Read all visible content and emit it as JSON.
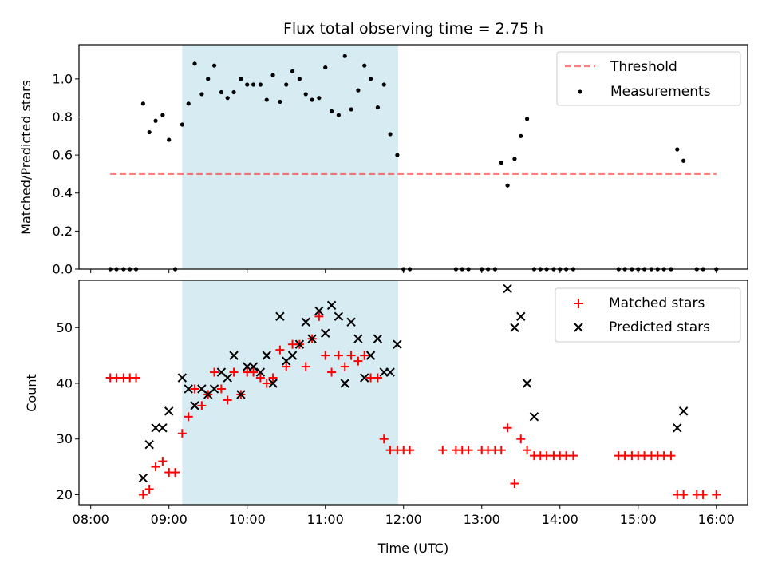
{
  "title": "Flux total observing time = 2.75 h",
  "colors": {
    "shade": "#add8e6",
    "threshold": "#ff0000",
    "matched": "#ff0000",
    "predicted": "#000000",
    "measurement": "#000000"
  },
  "shaded_interval_hours": [
    9.17,
    11.93
  ],
  "chart_data": [
    {
      "type": "scatter",
      "panel": "top",
      "ylabel": "Matched/Predicted stars",
      "ylim": [
        0,
        1.18
      ],
      "yticks": [
        0.0,
        0.2,
        0.4,
        0.6,
        0.8,
        1.0
      ],
      "ytick_labels": [
        "0.0",
        "0.2",
        "0.4",
        "0.6",
        "0.8",
        "1.0"
      ],
      "legend_position": "top-right",
      "threshold": {
        "name": "Threshold",
        "value": 0.5,
        "x": [
          8.25,
          16.0
        ]
      },
      "series": [
        {
          "name": "Measurements",
          "x": [
            8.25,
            8.33,
            8.42,
            8.5,
            8.58,
            8.67,
            8.75,
            8.83,
            8.92,
            9.0,
            9.08,
            9.17,
            9.25,
            9.33,
            9.42,
            9.5,
            9.58,
            9.67,
            9.75,
            9.83,
            9.92,
            10.0,
            10.08,
            10.17,
            10.25,
            10.33,
            10.42,
            10.5,
            10.58,
            10.67,
            10.75,
            10.83,
            10.92,
            11.0,
            11.08,
            11.17,
            11.25,
            11.33,
            11.42,
            11.5,
            11.58,
            11.67,
            11.75,
            11.83,
            11.92,
            12.0,
            12.08,
            12.67,
            12.75,
            12.83,
            13.0,
            13.08,
            13.17,
            13.25,
            13.33,
            13.42,
            13.5,
            13.58,
            13.67,
            13.75,
            13.83,
            13.92,
            14.0,
            14.08,
            14.17,
            14.75,
            14.83,
            14.92,
            15.0,
            15.08,
            15.17,
            15.25,
            15.33,
            15.42,
            15.5,
            15.58,
            15.75,
            15.83,
            16.0
          ],
          "y": [
            0.0,
            0.0,
            0.0,
            0.0,
            0.0,
            0.87,
            0.72,
            0.78,
            0.81,
            0.68,
            0.0,
            0.76,
            0.87,
            1.08,
            0.92,
            1.0,
            1.07,
            0.93,
            0.9,
            0.93,
            1.0,
            0.97,
            0.97,
            0.97,
            0.89,
            1.02,
            0.88,
            0.97,
            1.04,
            1.0,
            0.92,
            0.89,
            0.9,
            1.06,
            0.83,
            0.81,
            1.12,
            0.84,
            0.94,
            1.07,
            1.0,
            0.85,
            0.97,
            0.71,
            0.6,
            0.0,
            0.0,
            0.0,
            0.0,
            0.0,
            0.0,
            0.0,
            0.0,
            0.56,
            0.44,
            0.58,
            0.7,
            0.79,
            0.0,
            0.0,
            0.0,
            0.0,
            0.0,
            0.0,
            0.0,
            0.0,
            0.0,
            0.0,
            0.0,
            0.0,
            0.0,
            0.0,
            0.0,
            0.0,
            0.63,
            0.57,
            0.0,
            0.0,
            0.0
          ]
        }
      ],
      "legend": [
        "Threshold",
        "Measurements"
      ]
    },
    {
      "type": "scatter",
      "panel": "bottom",
      "xlabel": "Time (UTC)",
      "ylabel": "Count",
      "ylim": [
        18.2,
        58.5
      ],
      "yticks": [
        20,
        30,
        40,
        50
      ],
      "ytick_labels": [
        "20",
        "30",
        "40",
        "50"
      ],
      "xlim": [
        7.85,
        16.4
      ],
      "xticks": [
        8,
        9,
        10,
        11,
        12,
        13,
        14,
        15,
        16
      ],
      "xtick_labels": [
        "08:00",
        "09:00",
        "10:00",
        "11:00",
        "12:00",
        "13:00",
        "14:00",
        "15:00",
        "16:00"
      ],
      "legend_position": "top-right",
      "series": [
        {
          "name": "Matched stars",
          "marker": "plus",
          "x": [
            8.25,
            8.33,
            8.42,
            8.5,
            8.58,
            8.67,
            8.75,
            8.83,
            8.92,
            9.0,
            9.08,
            9.17,
            9.25,
            9.33,
            9.42,
            9.5,
            9.58,
            9.67,
            9.75,
            9.83,
            9.92,
            10.0,
            10.08,
            10.17,
            10.25,
            10.33,
            10.42,
            10.5,
            10.58,
            10.67,
            10.75,
            10.83,
            10.92,
            11.0,
            11.08,
            11.17,
            11.25,
            11.33,
            11.42,
            11.5,
            11.58,
            11.67,
            11.75,
            11.83,
            11.92,
            12.0,
            12.08,
            12.5,
            12.67,
            12.75,
            12.83,
            13.0,
            13.08,
            13.17,
            13.25,
            13.33,
            13.42,
            13.5,
            13.58,
            13.67,
            13.75,
            13.83,
            13.92,
            14.0,
            14.08,
            14.17,
            14.75,
            14.83,
            14.92,
            15.0,
            15.08,
            15.17,
            15.25,
            15.33,
            15.42,
            15.5,
            15.58,
            15.75,
            15.83,
            16.0
          ],
          "y": [
            41,
            41,
            41,
            41,
            41,
            20,
            21,
            25,
            26,
            24,
            24,
            31,
            34,
            39,
            36,
            38,
            42,
            39,
            37,
            42,
            38,
            42,
            42,
            41,
            40,
            41,
            46,
            43,
            47,
            47,
            43,
            48,
            52,
            45,
            42,
            45,
            43,
            45,
            44,
            45,
            41,
            41,
            30,
            28,
            28,
            28,
            28,
            28,
            28,
            28,
            28,
            28,
            28,
            28,
            28,
            32,
            22,
            30,
            28,
            27,
            27,
            27,
            27,
            27,
            27,
            27,
            27,
            27,
            27,
            27,
            27,
            27,
            27,
            27,
            27,
            20,
            20,
            20,
            20,
            20
          ]
        },
        {
          "name": "Predicted stars",
          "marker": "x",
          "x": [
            8.67,
            8.75,
            8.83,
            8.92,
            9.0,
            9.17,
            9.25,
            9.33,
            9.42,
            9.5,
            9.58,
            9.67,
            9.75,
            9.83,
            9.92,
            10.0,
            10.08,
            10.17,
            10.25,
            10.33,
            10.42,
            10.5,
            10.58,
            10.67,
            10.75,
            10.83,
            10.92,
            11.0,
            11.08,
            11.17,
            11.25,
            11.33,
            11.42,
            11.5,
            11.58,
            11.67,
            11.75,
            11.83,
            11.92,
            13.33,
            13.42,
            13.5,
            13.58,
            13.67,
            15.5,
            15.58
          ],
          "y": [
            23,
            29,
            32,
            32,
            35,
            41,
            39,
            36,
            39,
            38,
            39,
            42,
            41,
            45,
            38,
            43,
            43,
            42,
            45,
            40,
            52,
            44,
            45,
            47,
            51,
            48,
            53,
            49,
            54,
            52,
            40,
            51,
            48,
            41,
            45,
            48,
            42,
            42,
            47,
            57,
            50,
            52,
            40,
            34,
            32,
            35
          ]
        }
      ],
      "legend": [
        "Matched stars",
        "Predicted stars"
      ]
    }
  ]
}
